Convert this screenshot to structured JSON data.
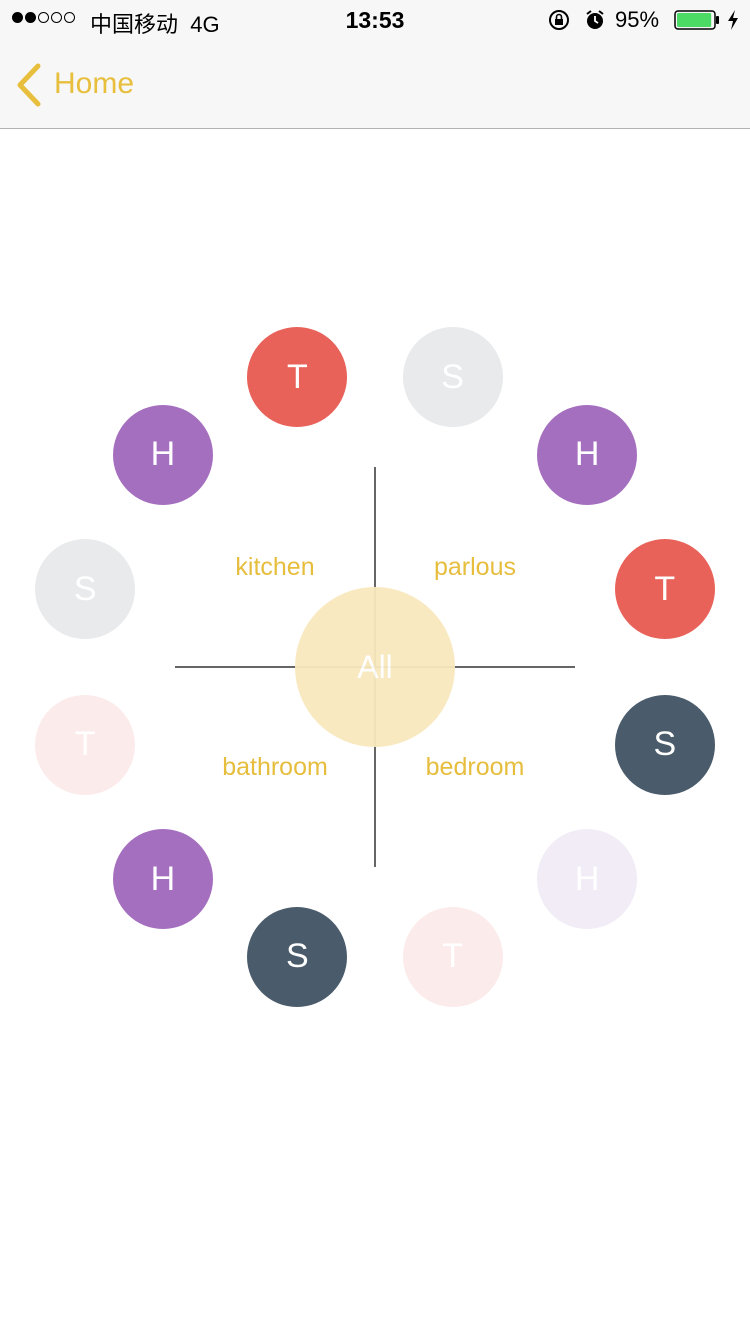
{
  "status_bar": {
    "carrier": "中国移动",
    "network": "4G",
    "time": "13:53",
    "battery_percent": "95%",
    "battery_level": 0.95,
    "signal_bars_filled": 2,
    "signal_bars_total": 5,
    "icons": [
      "orientation-lock-icon",
      "alarm-icon",
      "battery-icon",
      "charging-bolt-icon"
    ]
  },
  "nav": {
    "back_label": "Home",
    "accent_color": "#e8be3d"
  },
  "dial": {
    "center_label": "All",
    "rooms": {
      "top_left": "kitchen",
      "top_right": "parlous",
      "bottom_left": "bathroom",
      "bottom_right": "bedroom"
    },
    "nodes": [
      {
        "letter": "T",
        "color": "#e8625a",
        "state": "active"
      },
      {
        "letter": "S",
        "color": "#e8eaec",
        "state": "inactive"
      },
      {
        "letter": "H",
        "color": "#a56fbf",
        "state": "active"
      },
      {
        "letter": "T",
        "color": "#e8625a",
        "state": "active"
      },
      {
        "letter": "S",
        "color": "#4a5b6b",
        "state": "active"
      },
      {
        "letter": "H",
        "color": "#f2ecf6",
        "state": "inactive"
      },
      {
        "letter": "T",
        "color": "#fcebeb",
        "state": "inactive"
      },
      {
        "letter": "S",
        "color": "#4a5b6b",
        "state": "active"
      },
      {
        "letter": "H",
        "color": "#a56fbf",
        "state": "active"
      },
      {
        "letter": "T",
        "color": "#fcebeb",
        "state": "inactive"
      },
      {
        "letter": "S",
        "color": "#e8eaec",
        "state": "inactive"
      },
      {
        "letter": "H",
        "color": "#a56fbf",
        "state": "active"
      }
    ]
  }
}
